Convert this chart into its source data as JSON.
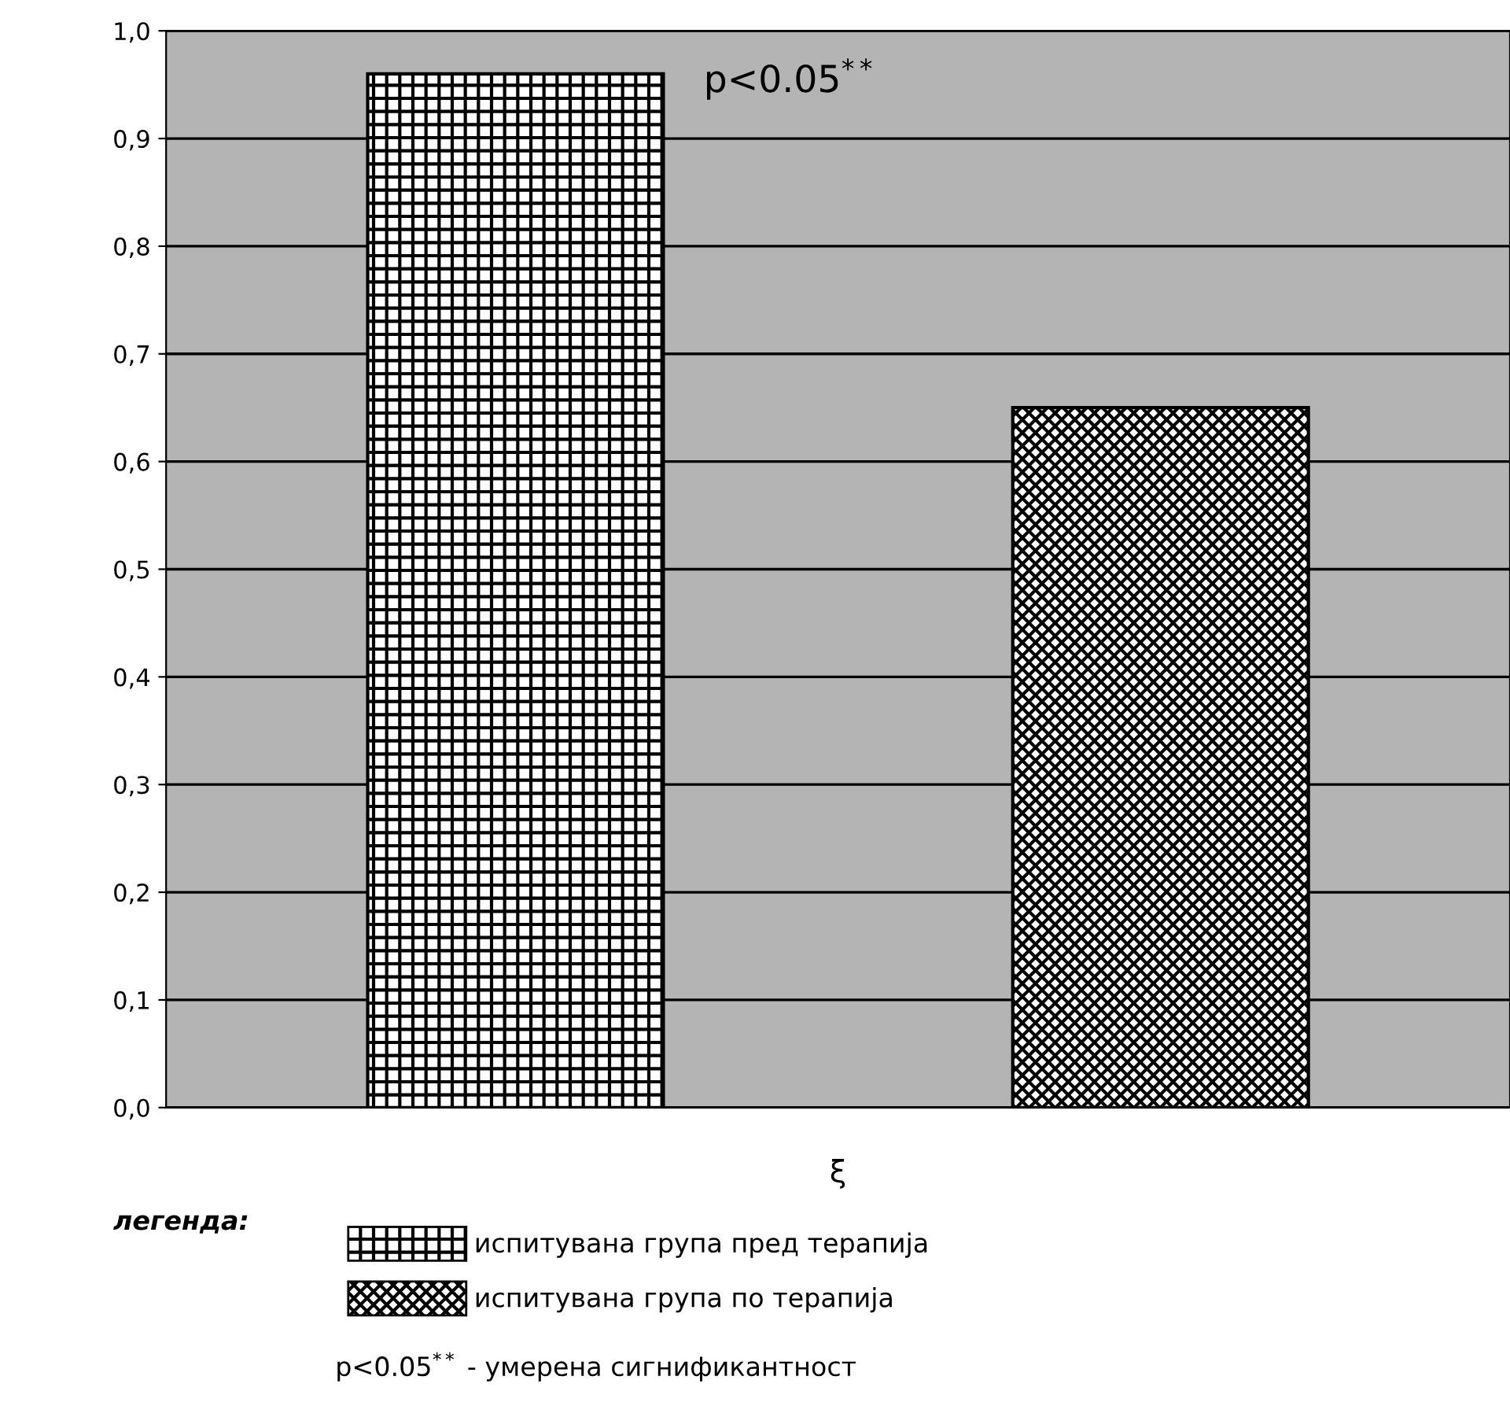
{
  "chart_data": {
    "type": "bar",
    "categories": [
      null
    ],
    "xlabel": "ξ",
    "legend_title": "легенда:",
    "series": [
      {
        "name": "испитувана група пред терапија",
        "color": "#000000",
        "values": [
          0.96
        ]
      },
      {
        "name": "испитувана група по терапија",
        "color": "#000000",
        "values": [
          0.65
        ]
      }
    ],
    "ylim": [
      0,
      1
    ],
    "yticks": [
      {
        "value": 0,
        "label": "0,0"
      },
      {
        "value": 0.1,
        "label": "0,1"
      },
      {
        "value": 0.2,
        "label": "0,2"
      },
      {
        "value": 0.3,
        "label": "0,3"
      },
      {
        "value": 0.4,
        "label": "0,4"
      },
      {
        "value": 0.5,
        "label": "0,5"
      },
      {
        "value": 0.6,
        "label": "0,6"
      },
      {
        "value": 0.7,
        "label": "0,7"
      },
      {
        "value": 0.8,
        "label": "0,8"
      },
      {
        "value": 0.9,
        "label": "0,9"
      },
      {
        "value": 1,
        "label": "1,0"
      }
    ],
    "grid": "y",
    "legend": "bottom left",
    "annotations": [
      "p<0.05$^{**}$",
      "p<0.05$^{**}$ - умерена сигнификантност"
    ]
  }
}
